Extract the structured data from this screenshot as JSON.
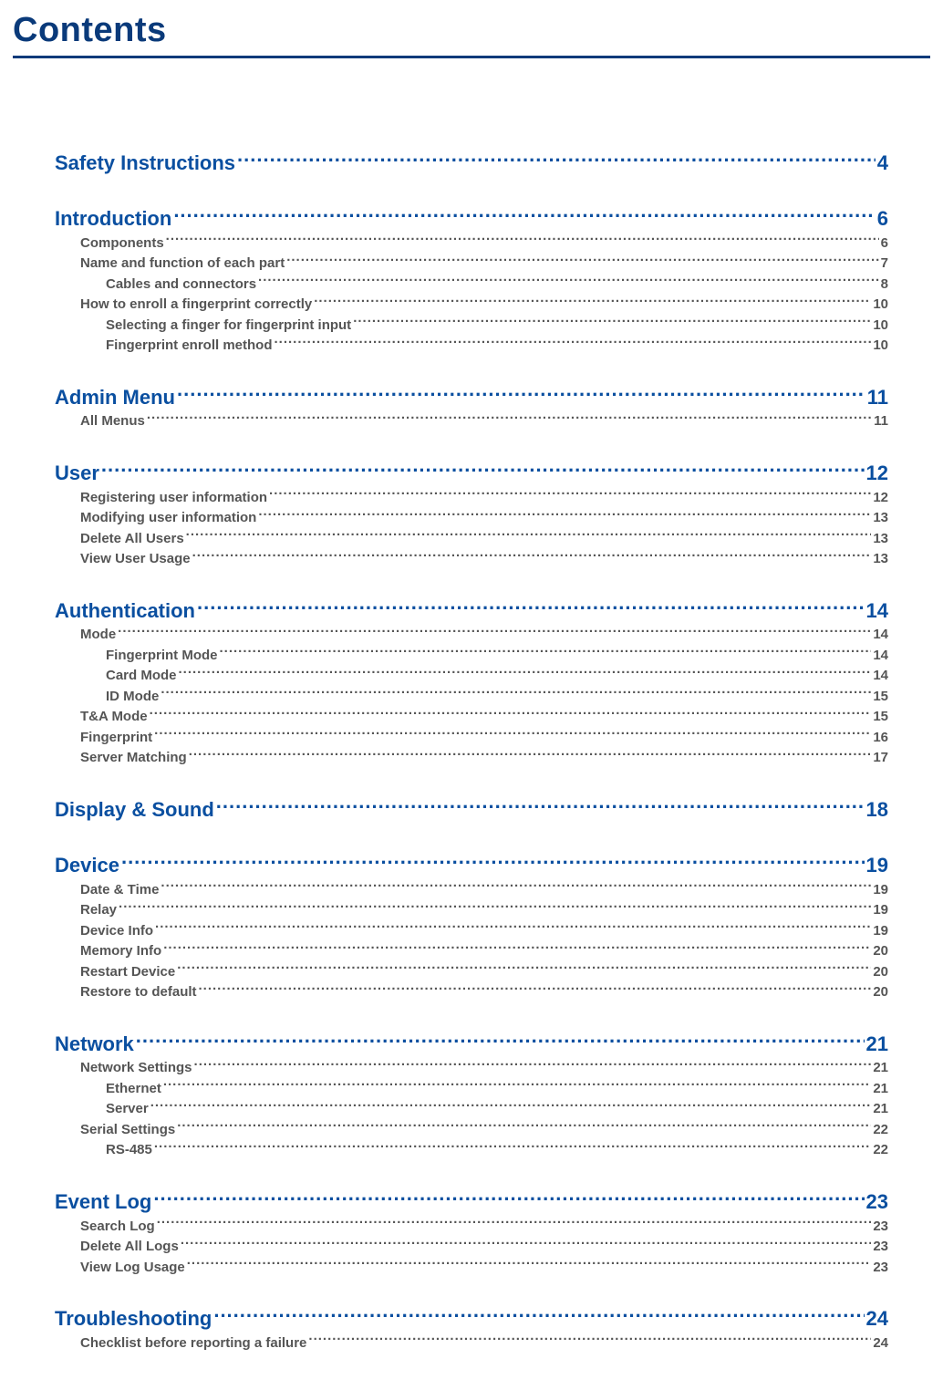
{
  "header": {
    "title": "Contents",
    "title_color": "#0a3a7a",
    "rule_color": "#0a3a7a"
  },
  "colors": {
    "section_color": "#0a4fa0",
    "entry_color": "#555555",
    "background": "#ffffff"
  },
  "toc": [
    {
      "title": "Safety Instructions",
      "page": "4",
      "entries": []
    },
    {
      "title": "Introduction",
      "page": "6",
      "entries": [
        {
          "level": 1,
          "title": "Components",
          "page": "6"
        },
        {
          "level": 1,
          "title": "Name and function of each part",
          "page": "7"
        },
        {
          "level": 2,
          "title": "Cables and connectors",
          "page": "8"
        },
        {
          "level": 1,
          "title": "How to enroll a fingerprint correctly",
          "page": "10"
        },
        {
          "level": 2,
          "title": "Selecting a finger for fingerprint input",
          "page": "10"
        },
        {
          "level": 2,
          "title": "Fingerprint enroll method",
          "page": "10"
        }
      ]
    },
    {
      "title": "Admin Menu",
      "page": "11",
      "entries": [
        {
          "level": 1,
          "title": "All Menus",
          "page": "11"
        }
      ]
    },
    {
      "title": "User",
      "page": "12",
      "entries": [
        {
          "level": 1,
          "title": "Registering user information",
          "page": "12"
        },
        {
          "level": 1,
          "title": "Modifying user information",
          "page": "13"
        },
        {
          "level": 1,
          "title": "Delete All Users",
          "page": "13"
        },
        {
          "level": 1,
          "title": "View User Usage",
          "page": "13"
        }
      ]
    },
    {
      "title": "Authentication",
      "page": "14",
      "entries": [
        {
          "level": 1,
          "title": "Mode",
          "page": "14"
        },
        {
          "level": 2,
          "title": "Fingerprint Mode",
          "page": "14"
        },
        {
          "level": 2,
          "title": "Card Mode",
          "page": "14"
        },
        {
          "level": 2,
          "title": "ID Mode",
          "page": "15"
        },
        {
          "level": 1,
          "title": "T&A Mode",
          "page": "15"
        },
        {
          "level": 1,
          "title": "Fingerprint",
          "page": "16"
        },
        {
          "level": 1,
          "title": "Server Matching",
          "page": "17"
        }
      ]
    },
    {
      "title": "Display & Sound",
      "page": "18",
      "entries": []
    },
    {
      "title": "Device",
      "page": "19",
      "entries": [
        {
          "level": 1,
          "title": "Date & Time",
          "page": "19"
        },
        {
          "level": 1,
          "title": "Relay",
          "page": "19"
        },
        {
          "level": 1,
          "title": "Device Info",
          "page": "19"
        },
        {
          "level": 1,
          "title": "Memory Info",
          "page": "20"
        },
        {
          "level": 1,
          "title": "Restart Device",
          "page": "20"
        },
        {
          "level": 1,
          "title": "Restore to default",
          "page": "20"
        }
      ]
    },
    {
      "title": "Network",
      "page": "21",
      "entries": [
        {
          "level": 1,
          "title": "Network Settings",
          "page": "21"
        },
        {
          "level": 2,
          "title": "Ethernet",
          "page": "21"
        },
        {
          "level": 2,
          "title": "Server",
          "page": "21"
        },
        {
          "level": 1,
          "title": "Serial Settings",
          "page": "22"
        },
        {
          "level": 2,
          "title": "RS-485",
          "page": "22"
        }
      ]
    },
    {
      "title": "Event Log",
      "page": "23",
      "entries": [
        {
          "level": 1,
          "title": "Search Log",
          "page": "23"
        },
        {
          "level": 1,
          "title": "Delete All Logs",
          "page": "23"
        },
        {
          "level": 1,
          "title": "View Log Usage",
          "page": "23"
        }
      ]
    },
    {
      "title": "Troubleshooting",
      "page": "24",
      "entries": [
        {
          "level": 1,
          "title": "Checklist before reporting a failure",
          "page": "24"
        }
      ]
    }
  ]
}
